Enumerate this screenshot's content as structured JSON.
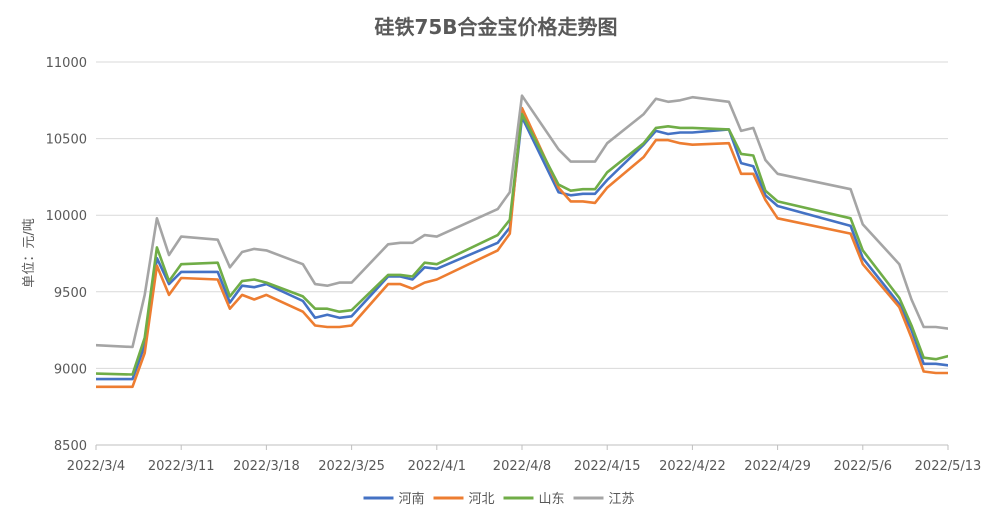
{
  "chart_data": {
    "type": "line",
    "title": "硅铁75B合金宝价格走势图",
    "ylabel": "单位：元/吨",
    "xlabel": "",
    "ylim": [
      8500,
      11000
    ],
    "y_ticks": [
      8500,
      9000,
      9500,
      10000,
      10500,
      11000
    ],
    "x_ticks": [
      "2022/3/4",
      "2022/3/11",
      "2022/3/18",
      "2022/3/25",
      "2022/4/1",
      "2022/4/8",
      "2022/4/15",
      "2022/4/22",
      "2022/4/29",
      "2022/5/6",
      "2022/5/13"
    ],
    "xlim": [
      "2022/3/4",
      "2022/5/13"
    ],
    "grid": "horizontal",
    "legend": "bottom",
    "x": [
      "2022/3/2",
      "2022/3/7",
      "2022/3/8",
      "2022/3/9",
      "2022/3/10",
      "2022/3/11",
      "2022/3/14",
      "2022/3/15",
      "2022/3/16",
      "2022/3/17",
      "2022/3/18",
      "2022/3/21",
      "2022/3/22",
      "2022/3/23",
      "2022/3/24",
      "2022/3/25",
      "2022/3/28",
      "2022/3/29",
      "2022/3/30",
      "2022/3/31",
      "2022/4/1",
      "2022/4/6",
      "2022/4/7",
      "2022/4/8",
      "2022/4/11",
      "2022/4/12",
      "2022/4/13",
      "2022/4/14",
      "2022/4/15",
      "2022/4/18",
      "2022/4/19",
      "2022/4/20",
      "2022/4/21",
      "2022/4/22",
      "2022/4/25",
      "2022/4/26",
      "2022/4/27",
      "2022/4/28",
      "2022/4/29",
      "2022/5/5",
      "2022/5/6",
      "2022/5/9",
      "2022/5/10",
      "2022/5/11",
      "2022/5/12",
      "2022/5/13"
    ],
    "series": [
      {
        "name": "河南",
        "color": "#4472c4",
        "values": [
          8930,
          8930,
          9150,
          9720,
          9550,
          9630,
          9630,
          9430,
          9540,
          9530,
          9550,
          9440,
          9330,
          9350,
          9330,
          9340,
          9600,
          9600,
          9580,
          9660,
          9650,
          9820,
          9920,
          10640,
          10150,
          10130,
          10140,
          10140,
          10230,
          10460,
          10550,
          10530,
          10540,
          10540,
          10560,
          10340,
          10320,
          10130,
          10060,
          9930,
          9720,
          9420,
          9250,
          9030,
          9030,
          9020
        ]
      },
      {
        "name": "河北",
        "color": "#ed7d31",
        "values": [
          8880,
          8880,
          9100,
          9670,
          9480,
          9590,
          9580,
          9390,
          9480,
          9450,
          9480,
          9370,
          9280,
          9270,
          9270,
          9280,
          9550,
          9550,
          9520,
          9560,
          9580,
          9770,
          9880,
          10700,
          10180,
          10090,
          10090,
          10080,
          10180,
          10380,
          10490,
          10490,
          10470,
          10460,
          10470,
          10270,
          10270,
          10100,
          9980,
          9880,
          9680,
          9400,
          9200,
          8980,
          8970,
          8970
        ]
      },
      {
        "name": "山东",
        "color": "#70ad47",
        "values": [
          8970,
          8960,
          9200,
          9790,
          9570,
          9680,
          9690,
          9470,
          9570,
          9580,
          9560,
          9470,
          9390,
          9390,
          9370,
          9380,
          9610,
          9610,
          9600,
          9690,
          9680,
          9870,
          9970,
          10660,
          10200,
          10160,
          10170,
          10170,
          10280,
          10470,
          10570,
          10580,
          10570,
          10570,
          10560,
          10400,
          10390,
          10160,
          10090,
          9980,
          9770,
          9460,
          9280,
          9070,
          9060,
          9080
        ]
      },
      {
        "name": "江苏",
        "color": "#a5a5a5",
        "values": [
          9160,
          9140,
          9480,
          9980,
          9740,
          9860,
          9840,
          9660,
          9760,
          9780,
          9770,
          9680,
          9550,
          9540,
          9560,
          9560,
          9810,
          9820,
          9820,
          9870,
          9860,
          10040,
          10150,
          10780,
          10430,
          10350,
          10350,
          10350,
          10470,
          10660,
          10760,
          10740,
          10750,
          10770,
          10740,
          10550,
          10570,
          10360,
          10270,
          10170,
          9940,
          9680,
          9450,
          9270,
          9270,
          9260
        ]
      }
    ]
  }
}
